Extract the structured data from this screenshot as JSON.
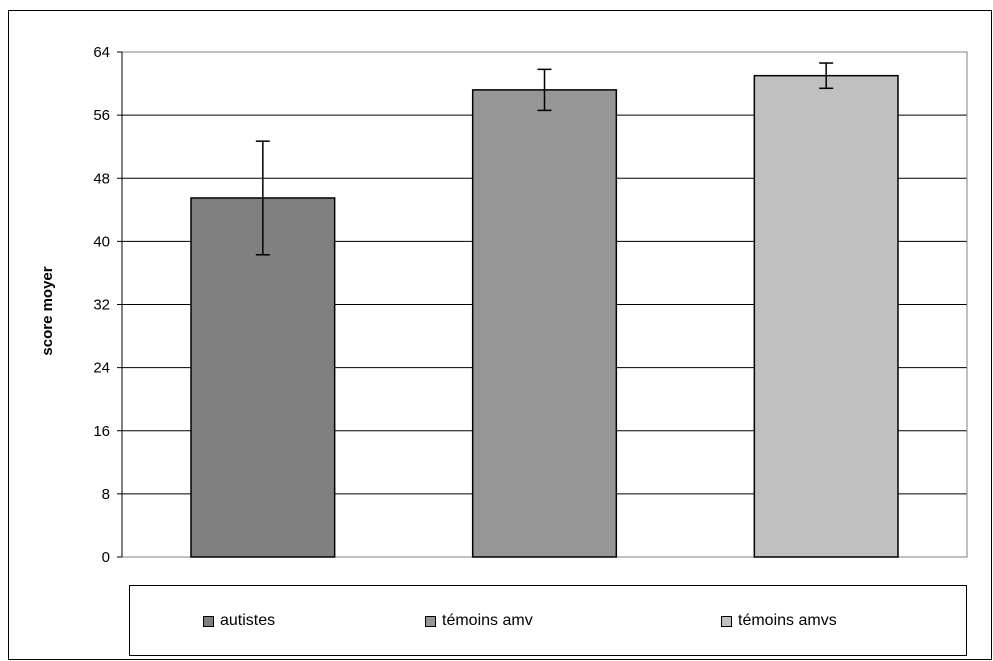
{
  "chart_data": {
    "type": "bar",
    "categories": [
      "autistes",
      "témoins amv",
      "témoins amvs"
    ],
    "series": [
      {
        "values": [
          45.5,
          59.2,
          61.0
        ],
        "error": [
          7.2,
          2.6,
          1.6
        ]
      }
    ],
    "ylabel": "score moyer",
    "xlabel": "",
    "title": "",
    "ylim": [
      0,
      64
    ],
    "yticks": [
      0,
      8,
      16,
      24,
      32,
      40,
      48,
      56,
      64
    ],
    "grid": true,
    "legend_placement": "bottom",
    "colors": [
      "#808080",
      "#969696",
      "#c0c0c0"
    ],
    "legend": [
      {
        "label": "autistes",
        "color": "#808080"
      },
      {
        "label": "témoins amv",
        "color": "#969696"
      },
      {
        "label": "témoins amvs",
        "color": "#c0c0c0"
      }
    ]
  }
}
